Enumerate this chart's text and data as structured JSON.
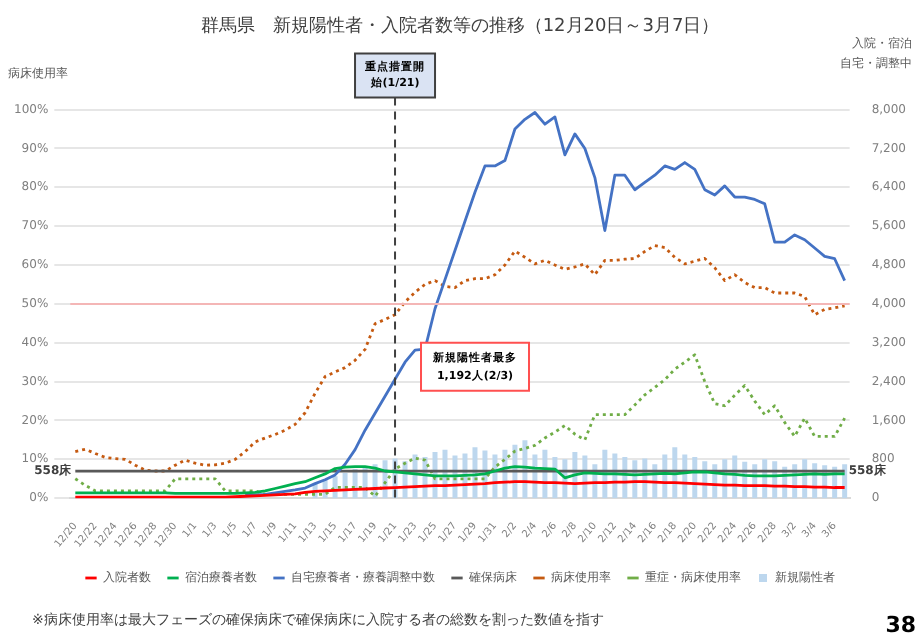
{
  "chart_data": {
    "type": "line",
    "title": "群馬県　新規陽性者・入院者数等の推移（12月20日～3月7日）",
    "ylabel": "病床使用率",
    "y2label": "入院・宿泊自宅・調整中",
    "categories": [
      "12/20",
      null,
      "12/22",
      null,
      "12/24",
      null,
      "12/26",
      null,
      "12/28",
      null,
      "12/30",
      null,
      "1/1",
      null,
      "1/3",
      null,
      "1/5",
      null,
      "1/7",
      null,
      "1/9",
      null,
      "1/11",
      null,
      "1/13",
      null,
      "1/15",
      null,
      "1/17",
      null,
      "1/19",
      null,
      "1/21",
      null,
      "1/23",
      null,
      "1/25",
      null,
      "1/27",
      null,
      "1/29",
      null,
      "1/31",
      null,
      "2/2",
      null,
      "2/4",
      null,
      "2/6",
      null,
      "2/8",
      null,
      "2/10",
      null,
      "2/12",
      null,
      "2/14",
      null,
      "2/16",
      null,
      "2/18",
      null,
      "2/20",
      null,
      "2/22",
      null,
      "2/24",
      null,
      "2/26",
      null,
      "2/28",
      null,
      "3/2",
      null,
      "3/4",
      null,
      "3/6",
      null
    ],
    "series": [
      {
        "name": "新規陽性者",
        "type": "bar",
        "axis": "y2",
        "color": "#bdd7ee",
        "values": [
          null,
          null,
          null,
          null,
          null,
          null,
          null,
          null,
          null,
          null,
          null,
          null,
          null,
          null,
          null,
          null,
          null,
          null,
          null,
          null,
          null,
          null,
          null,
          null,
          300,
          380,
          450,
          520,
          600,
          650,
          700,
          780,
          820,
          760,
          900,
          850,
          950,
          1000,
          880,
          920,
          1050,
          980,
          900,
          1000,
          1100,
          1192,
          900,
          1000,
          850,
          800,
          950,
          880,
          700,
          1000,
          920,
          850,
          780,
          820,
          700,
          900,
          1050,
          900,
          850,
          760,
          700,
          800,
          880,
          750,
          700,
          800,
          760,
          650,
          700,
          800,
          720,
          680,
          650,
          700
        ]
      },
      {
        "name": "入院者数",
        "axis": "y2",
        "color": "#ff0000",
        "line_style": "solid",
        "values": [
          20,
          20,
          20,
          20,
          20,
          20,
          20,
          20,
          20,
          20,
          20,
          20,
          20,
          20,
          20,
          20,
          30,
          40,
          50,
          60,
          70,
          80,
          90,
          120,
          140,
          150,
          160,
          170,
          180,
          190,
          200,
          210,
          220,
          230,
          240,
          250,
          260,
          260,
          270,
          280,
          290,
          300,
          320,
          330,
          340,
          340,
          330,
          320,
          320,
          310,
          300,
          310,
          320,
          320,
          330,
          330,
          340,
          340,
          330,
          320,
          320,
          310,
          300,
          290,
          280,
          270,
          270,
          260,
          260,
          260,
          250,
          250,
          240,
          240,
          230,
          230,
          220,
          220
        ]
      },
      {
        "name": "宿泊療養者数",
        "axis": "y2",
        "color": "#00b050",
        "line_style": "solid",
        "values": [
          110,
          110,
          110,
          110,
          110,
          110,
          110,
          110,
          110,
          110,
          100,
          100,
          100,
          100,
          100,
          100,
          100,
          110,
          120,
          150,
          200,
          250,
          300,
          340,
          420,
          500,
          610,
          640,
          650,
          650,
          620,
          560,
          540,
          520,
          500,
          480,
          460,
          460,
          460,
          470,
          480,
          500,
          560,
          620,
          650,
          640,
          620,
          610,
          600,
          420,
          480,
          520,
          510,
          500,
          500,
          490,
          480,
          490,
          500,
          510,
          500,
          520,
          540,
          540,
          520,
          500,
          490,
          470,
          460,
          460,
          460,
          470,
          480,
          490,
          500,
          490,
          500,
          500
        ]
      },
      {
        "name": "自宅療養者・療養調整中数",
        "axis": "y2",
        "color": "#4472c4",
        "line_style": "solid",
        "values": [
          null,
          null,
          null,
          null,
          null,
          null,
          null,
          null,
          null,
          null,
          null,
          null,
          null,
          null,
          null,
          null,
          null,
          70,
          70,
          80,
          110,
          140,
          170,
          210,
          300,
          380,
          480,
          700,
          1000,
          1400,
          1750,
          2100,
          2450,
          2800,
          3050,
          3070,
          3900,
          4500,
          5100,
          5700,
          6300,
          6840,
          6840,
          6950,
          7600,
          7800,
          7940,
          7700,
          7850,
          7070,
          7500,
          7200,
          6600,
          5510,
          6650,
          6650,
          6350,
          6500,
          6650,
          6840,
          6770,
          6910,
          6770,
          6350,
          6240,
          6430,
          6200,
          6200,
          6150,
          6060,
          5270,
          5270,
          5420,
          5320,
          5150,
          4980,
          4930,
          4480
        ]
      },
      {
        "name": "確保病床",
        "axis": "y2",
        "color": "#595959",
        "line_style": "solid",
        "values": [
          558,
          558,
          558,
          558,
          558,
          558,
          558,
          558,
          558,
          558,
          558,
          558,
          558,
          558,
          558,
          558,
          558,
          558,
          558,
          558,
          558,
          558,
          558,
          558,
          558,
          558,
          558,
          558,
          558,
          558,
          558,
          558,
          558,
          558,
          558,
          558,
          558,
          558,
          558,
          558,
          558,
          558,
          558,
          558,
          558,
          558,
          558,
          558,
          558,
          558,
          558,
          558,
          558,
          558,
          558,
          558,
          558,
          558,
          558,
          558,
          558,
          558,
          558,
          558,
          558,
          558,
          558,
          558,
          558,
          558,
          558,
          558,
          558,
          558,
          558,
          558,
          558,
          558
        ],
        "value_labels": [
          "558床",
          null,
          null,
          null,
          null,
          null,
          null,
          null,
          null,
          null,
          null,
          null,
          null,
          null,
          null,
          null,
          null,
          null,
          null,
          null,
          null,
          null,
          null,
          null,
          null,
          null,
          null,
          null,
          null,
          null,
          null,
          null,
          null,
          null,
          null,
          null,
          null,
          null,
          null,
          null,
          null,
          null,
          null,
          null,
          null,
          null,
          null,
          null,
          null,
          null,
          null,
          null,
          null,
          null,
          null,
          null,
          null,
          null,
          null,
          null,
          null,
          null,
          null,
          null,
          null,
          null,
          null,
          null,
          null,
          null,
          null,
          null,
          null,
          null,
          null,
          null,
          null,
          "558床"
        ]
      },
      {
        "name": "病床使用率",
        "axis": "y",
        "color": "#c55a11",
        "line_style": "dotted",
        "values": [
          12,
          12.6,
          11.5,
          10.5,
          10.2,
          10,
          8.5,
          7.2,
          7,
          7,
          8.5,
          9.8,
          9,
          8.5,
          8.6,
          9,
          10,
          12,
          14.5,
          15.5,
          16.4,
          17.5,
          19,
          22,
          27,
          31.3,
          32.5,
          33.6,
          35.5,
          38.3,
          44.9,
          46,
          47.2,
          50.5,
          53,
          55,
          56,
          54.5,
          54.2,
          56,
          56.5,
          56.5,
          57.5,
          60,
          63.6,
          62,
          60.3,
          61.2,
          60,
          58.9,
          59.5,
          60.3,
          57.5,
          61.2,
          61.2,
          61.5,
          61.7,
          63.5,
          65,
          64.5,
          62,
          60.3,
          61,
          61.7,
          59.3,
          56,
          57.5,
          55.5,
          54.2,
          54.2,
          52.8,
          52.8,
          52.8,
          51.9,
          47.2,
          48.6,
          49,
          49.5
        ]
      },
      {
        "name": "重症・病床使用率",
        "axis": "y",
        "color": "#70ad47",
        "line_style": "dotted",
        "values": [
          5,
          3.3,
          1.9,
          1.9,
          1.9,
          1.9,
          1.9,
          1.9,
          1.9,
          1.9,
          5,
          5,
          5,
          5,
          5,
          1.9,
          1.9,
          1.9,
          1.9,
          1,
          1,
          1,
          1,
          1,
          1,
          1,
          2.8,
          2.8,
          2.8,
          2.8,
          0.5,
          4,
          7.5,
          9,
          10.3,
          9.8,
          5,
          5,
          5,
          5,
          5,
          5,
          8,
          10,
          12.1,
          12.8,
          13.6,
          15.5,
          17,
          18.7,
          16.5,
          15,
          21.5,
          21.5,
          21.5,
          21.5,
          24,
          26.6,
          28.5,
          30.5,
          33.2,
          35,
          36.9,
          30,
          24.3,
          23.8,
          26.5,
          29,
          25,
          21.5,
          23.8,
          19.5,
          15.9,
          20.6,
          15.9,
          15.9,
          15.9,
          20.6
        ]
      }
    ],
    "ylim": [
      0,
      100
    ],
    "yticks": [
      {
        "value": 0,
        "label": "0%"
      },
      {
        "value": 10,
        "label": "10%"
      },
      {
        "value": 20,
        "label": "20%"
      },
      {
        "value": 30,
        "label": "30%"
      },
      {
        "value": 40,
        "label": "40%"
      },
      {
        "value": 50,
        "label": "50%"
      },
      {
        "value": 60,
        "label": "60%"
      },
      {
        "value": 70,
        "label": "70%"
      },
      {
        "value": 80,
        "label": "80%"
      },
      {
        "value": 90,
        "label": "90%"
      },
      {
        "value": 100,
        "label": "100%"
      }
    ],
    "y2lim": [
      0,
      8000
    ],
    "y2ticks": [
      0,
      800,
      {
        "value": 1600,
        "label": "1,600"
      },
      {
        "value": 2400,
        "label": "2,400"
      },
      {
        "value": 3200,
        "label": "3,200"
      },
      {
        "value": 4000,
        "label": "4,000"
      },
      {
        "value": 4800,
        "label": "4,800"
      },
      {
        "value": 5600,
        "label": "5,600"
      },
      {
        "value": 6400,
        "label": "6,400"
      },
      {
        "value": 7200,
        "label": "7,200"
      },
      {
        "value": 8000,
        "label": "8,000"
      }
    ],
    "ref_lines": [
      {
        "axis": "x",
        "value": "1/21",
        "label": "重点措置開始(1/21)",
        "color": "#404040",
        "line_style": "dashed"
      },
      {
        "axis": "y",
        "value": 50,
        "color": "#f4b6b6",
        "line_style": "solid"
      }
    ],
    "annotations": [
      "新規陽性者最多\n1,192人(2/3)",
      "※病床使用率は最大フェーズの確保病床で確保病床に入院する者の総数を割った数値を指す",
      "38"
    ],
    "grid": "y",
    "legend": "bottom",
    "marker": "none"
  }
}
